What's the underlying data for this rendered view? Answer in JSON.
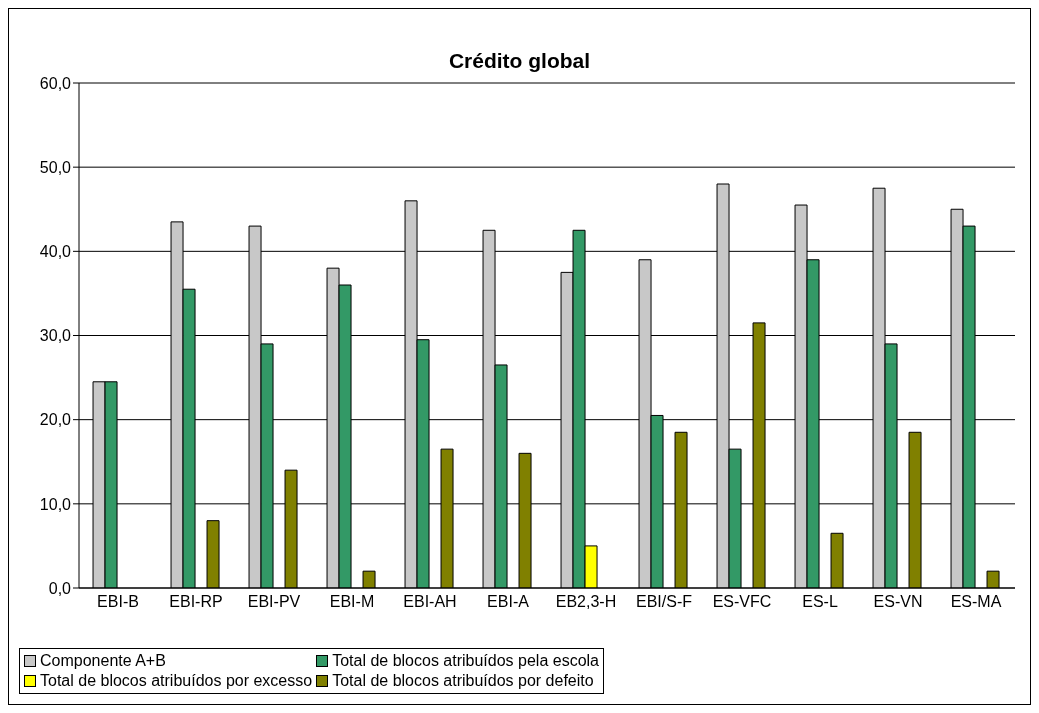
{
  "chart_data": {
    "type": "bar",
    "title": "Crédito global",
    "categories": [
      "EBI-B",
      "EBI-RP",
      "EBI-PV",
      "EBI-M",
      "EBI-AH",
      "EBI-A",
      "EB2,3-H",
      "EBI/S-F",
      "ES-VFC",
      "ES-L",
      "ES-VN",
      "ES-MA"
    ],
    "series": [
      {
        "name": "Componente A+B",
        "color": "#c8c8c8",
        "values": [
          24.5,
          43.5,
          43,
          38,
          46,
          42.5,
          37.5,
          39,
          48,
          45.5,
          47.5,
          45
        ]
      },
      {
        "name": "Total de blocos atribuídos pela escola",
        "color": "#339966",
        "values": [
          24.5,
          35.5,
          29,
          36,
          29.5,
          26.5,
          42.5,
          20.5,
          16.5,
          39,
          29,
          43
        ]
      },
      {
        "name": "Total de blocos atribuídos por excesso",
        "color": "#ffff00",
        "values": [
          null,
          null,
          null,
          null,
          null,
          null,
          5,
          null,
          null,
          null,
          null,
          null
        ]
      },
      {
        "name": "Total de blocos atribuídos por defeito",
        "color": "#808000",
        "values": [
          null,
          8,
          14,
          2,
          16.5,
          16,
          null,
          18.5,
          31.5,
          6.5,
          18.5,
          2
        ]
      }
    ],
    "ylim": [
      0,
      60
    ],
    "yticks": [
      {
        "value": 0,
        "label": "0,0"
      },
      {
        "value": 10,
        "label": "10,0"
      },
      {
        "value": 20,
        "label": "20,0"
      },
      {
        "value": 30,
        "label": "30,0"
      },
      {
        "value": 40,
        "label": "40,0"
      },
      {
        "value": 50,
        "label": "50,0"
      },
      {
        "value": 60,
        "label": "60,0"
      }
    ],
    "grid": "y",
    "legend": "bottom"
  }
}
